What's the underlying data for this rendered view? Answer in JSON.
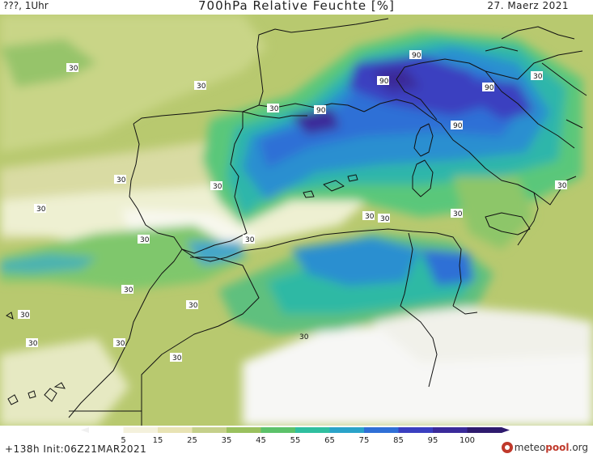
{
  "header": {
    "left": "???, 1Uhr",
    "title": "700hPa Relative Feuchte [%]",
    "date": "27. Maerz 2021"
  },
  "map": {
    "contour_labels": [
      {
        "text": "90"
      },
      {
        "text": "90"
      },
      {
        "text": "90"
      },
      {
        "text": "90"
      },
      {
        "text": "90"
      },
      {
        "text": "30"
      },
      {
        "text": "30"
      },
      {
        "text": "30"
      },
      {
        "text": "30"
      },
      {
        "text": "30"
      },
      {
        "text": "30"
      },
      {
        "text": "30"
      },
      {
        "text": "30"
      },
      {
        "text": "30"
      },
      {
        "text": "30"
      },
      {
        "text": "30"
      },
      {
        "text": "30"
      },
      {
        "text": "30"
      },
      {
        "text": "30"
      },
      {
        "text": "30"
      },
      {
        "text": "30"
      },
      {
        "text": "30"
      },
      {
        "text": "30"
      },
      {
        "text": "30"
      }
    ]
  },
  "legend": {
    "ticks": [
      "5",
      "15",
      "25",
      "35",
      "45",
      "55",
      "65",
      "75",
      "85",
      "95",
      "100"
    ],
    "colors": [
      "#ffffff",
      "#f4f1dc",
      "#e8e3b4",
      "#c5d08a",
      "#9ac15e",
      "#5cc26a",
      "#2fbf9f",
      "#2aa3c9",
      "#2f6fd6",
      "#3a3fc0",
      "#3a2a9a",
      "#2e1a6e"
    ]
  },
  "footer": {
    "run": "+138h  Init:06Z21MAR2021",
    "brand_a": "meteo",
    "brand_b": "pool",
    "brand_c": ".org"
  }
}
